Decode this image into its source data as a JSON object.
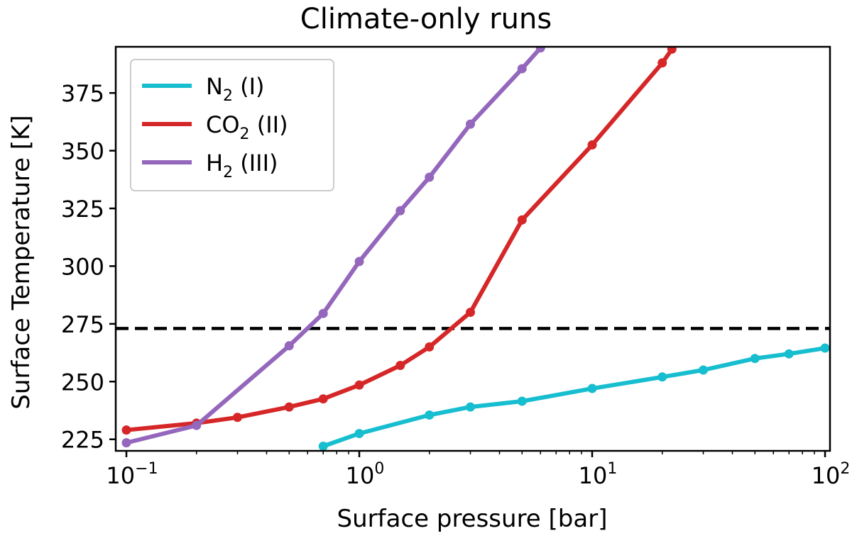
{
  "chart_data": {
    "type": "line",
    "title": "Climate-only runs",
    "xlabel": "Surface pressure [bar]",
    "ylabel": "Surface Temperature [K]",
    "xscale": "log",
    "xlim": [
      0.09,
      105
    ],
    "ylim": [
      220,
      395
    ],
    "x_ticks": [
      {
        "value": 0.1,
        "base": "10",
        "exp": "−1"
      },
      {
        "value": 1,
        "base": "10",
        "exp": "0"
      },
      {
        "value": 10,
        "base": "10",
        "exp": "1"
      },
      {
        "value": 100,
        "base": "10",
        "exp": "2"
      }
    ],
    "y_ticks": [
      {
        "value": 225,
        "label": "225"
      },
      {
        "value": 250,
        "label": "250"
      },
      {
        "value": 275,
        "label": "275"
      },
      {
        "value": 300,
        "label": "300"
      },
      {
        "value": 325,
        "label": "325"
      },
      {
        "value": 350,
        "label": "350"
      },
      {
        "value": 375,
        "label": "375"
      }
    ],
    "reference_line": {
      "y": 273,
      "style": "dashed",
      "color": "#000000"
    },
    "legend": {
      "position": "top-left"
    },
    "series": [
      {
        "name": "N2 (I)",
        "legend_main": "N",
        "legend_sub": "2",
        "legend_rest": " (I)",
        "color": "#17becf",
        "x": [
          0.7,
          1,
          2,
          3,
          5,
          10,
          20,
          30,
          50,
          70,
          100
        ],
        "y": [
          222,
          227.5,
          235.5,
          239,
          241.5,
          247,
          252,
          255,
          260,
          262,
          264.5
        ]
      },
      {
        "name": "CO2 (II)",
        "legend_main": "CO",
        "legend_sub": "2",
        "legend_rest": " (II)",
        "color": "#d62728",
        "x": [
          0.1,
          0.2,
          0.3,
          0.5,
          0.7,
          1,
          1.5,
          2,
          3,
          5,
          10,
          20,
          22
        ],
        "y": [
          229,
          232,
          234.5,
          239,
          242.5,
          248.5,
          257,
          265,
          280,
          320,
          352.5,
          388,
          394
        ]
      },
      {
        "name": "H2 (III)",
        "legend_main": "H",
        "legend_sub": "2",
        "legend_rest": " (III)",
        "color": "#9467bd",
        "x": [
          0.1,
          0.2,
          0.5,
          0.7,
          1,
          1.5,
          2,
          3,
          5,
          6
        ],
        "y": [
          223.5,
          231,
          265.5,
          279.5,
          302,
          324,
          338.5,
          361.5,
          385.5,
          394.5
        ]
      }
    ]
  }
}
